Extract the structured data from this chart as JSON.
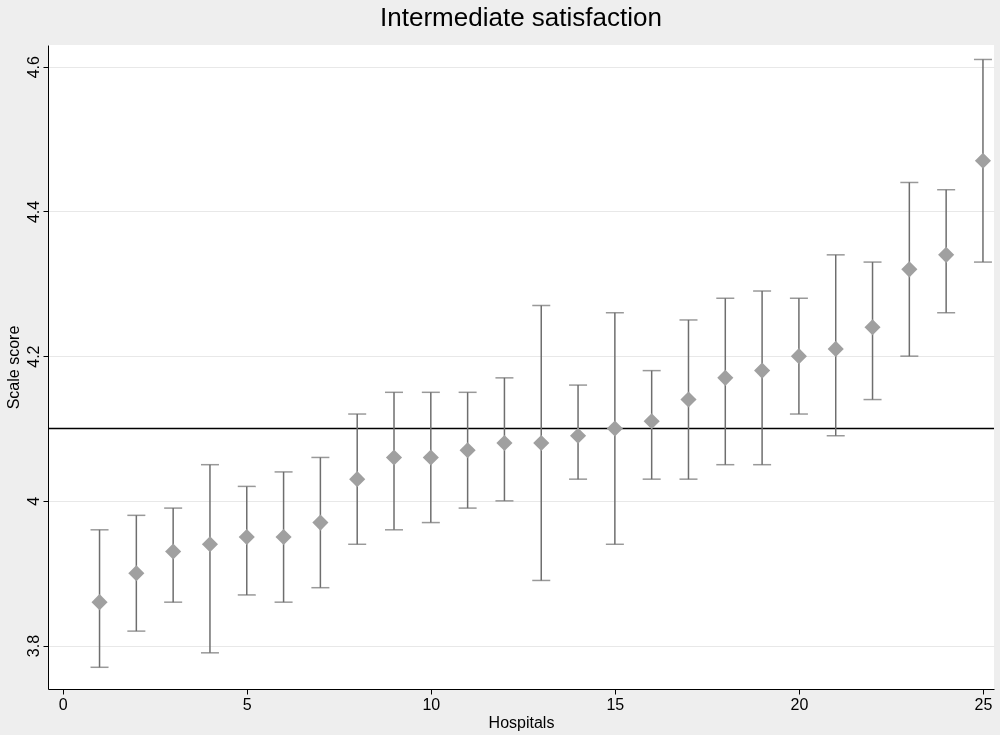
{
  "chart_data": {
    "type": "scatter",
    "title": "Intermediate satisfaction",
    "xlabel": "Hospitals",
    "ylabel": "Scale score",
    "x": [
      1,
      2,
      3,
      4,
      5,
      6,
      7,
      8,
      9,
      10,
      11,
      12,
      13,
      14,
      15,
      16,
      17,
      18,
      19,
      20,
      21,
      22,
      23,
      24,
      25
    ],
    "series": [
      {
        "color": "#a0a0a0",
        "values": [
          3.86,
          3.9,
          3.93,
          3.94,
          3.95,
          3.95,
          3.97,
          4.03,
          4.06,
          4.06,
          4.07,
          4.08,
          4.08,
          4.09,
          4.1,
          4.11,
          4.14,
          4.17,
          4.18,
          4.2,
          4.21,
          4.24,
          4.32,
          4.34,
          4.47
        ],
        "errors": [
          [
            3.77,
            3.96
          ],
          [
            3.82,
            3.98
          ],
          [
            3.86,
            3.99
          ],
          [
            3.79,
            4.05
          ],
          [
            3.87,
            4.02
          ],
          [
            3.86,
            4.04
          ],
          [
            3.88,
            4.06
          ],
          [
            3.94,
            4.12
          ],
          [
            3.96,
            4.15
          ],
          [
            3.97,
            4.15
          ],
          [
            3.99,
            4.15
          ],
          [
            4.0,
            4.17
          ],
          [
            3.89,
            4.27
          ],
          [
            4.03,
            4.16
          ],
          [
            3.94,
            4.26
          ],
          [
            4.03,
            4.18
          ],
          [
            4.03,
            4.25
          ],
          [
            4.05,
            4.28
          ],
          [
            4.05,
            4.29
          ],
          [
            4.12,
            4.28
          ],
          [
            4.09,
            4.34
          ],
          [
            4.14,
            4.33
          ],
          [
            4.2,
            4.44
          ],
          [
            4.26,
            4.43
          ],
          [
            4.33,
            4.61
          ]
        ]
      }
    ],
    "xlim": [
      -0.4,
      25.3
    ],
    "xticks": [
      0,
      5,
      10,
      15,
      20,
      25
    ],
    "ylim": [
      3.74,
      4.63
    ],
    "yticks": [
      3.8,
      4,
      4.2,
      4.4,
      4.6
    ],
    "ref_lines": [
      {
        "axis": "y",
        "value": 4.1,
        "color": "#000000"
      }
    ],
    "grid": "y",
    "marker": "diamond"
  }
}
